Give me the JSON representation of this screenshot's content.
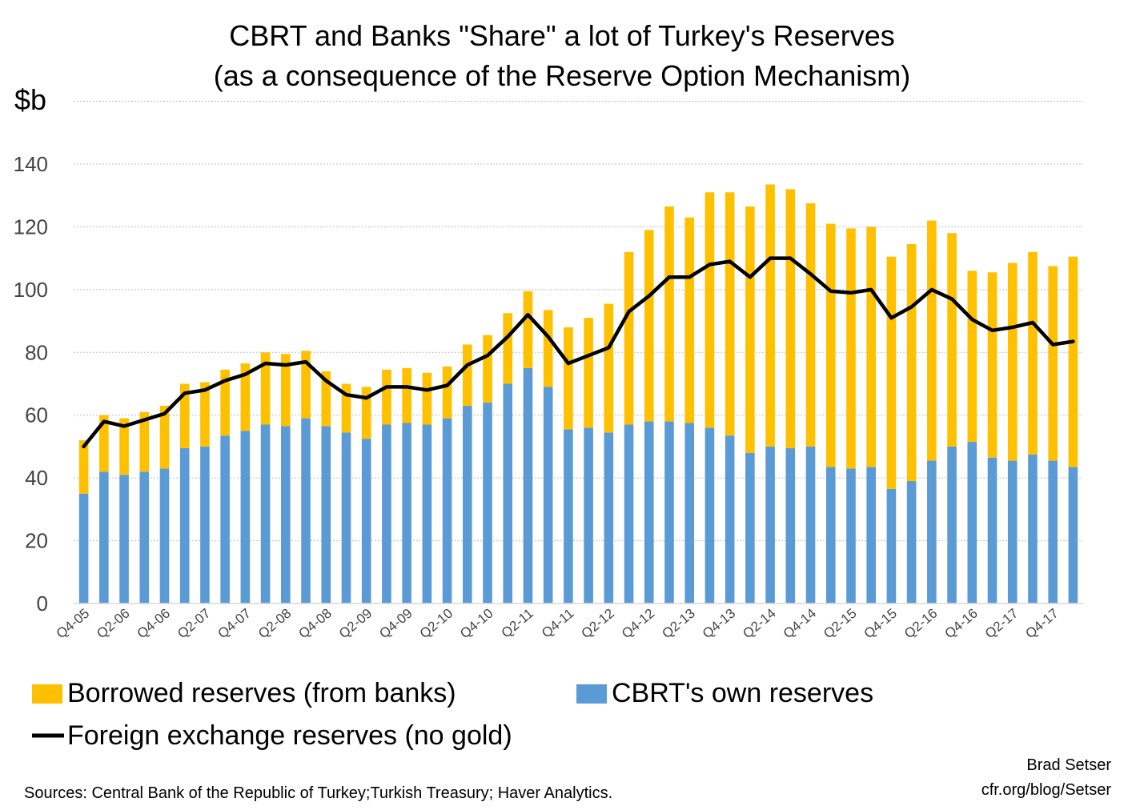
{
  "chart_data": {
    "type": "bar",
    "title": "CBRT and Banks \"Share\" a lot of Turkey's Reserves",
    "subtitle": "(as a consequence of the Reserve Option Mechanism)",
    "ylabel": "$b",
    "xlabel": "",
    "ylim": [
      0,
      160
    ],
    "yticks": [
      0,
      20,
      40,
      60,
      80,
      100,
      120,
      140
    ],
    "grid": true,
    "legend_placement": "bottom",
    "categories": [
      "Q4-05",
      "Q1-06",
      "Q2-06",
      "Q3-06",
      "Q4-06",
      "Q1-07",
      "Q2-07",
      "Q3-07",
      "Q4-07",
      "Q1-08",
      "Q2-08",
      "Q3-08",
      "Q4-08",
      "Q1-09",
      "Q2-09",
      "Q3-09",
      "Q4-09",
      "Q1-10",
      "Q2-10",
      "Q3-10",
      "Q4-10",
      "Q1-11",
      "Q2-11",
      "Q3-11",
      "Q4-11",
      "Q1-12",
      "Q2-12",
      "Q3-12",
      "Q4-12",
      "Q1-13",
      "Q2-13",
      "Q3-13",
      "Q4-13",
      "Q1-14",
      "Q2-14",
      "Q3-14",
      "Q4-14",
      "Q1-15",
      "Q2-15",
      "Q3-15",
      "Q4-15",
      "Q1-16",
      "Q2-16",
      "Q3-16",
      "Q4-16",
      "Q1-17",
      "Q2-17",
      "Q3-17",
      "Q4-17",
      "Q1-18"
    ],
    "tick_labels": [
      "Q4-05",
      "Q2-06",
      "Q4-06",
      "Q2-07",
      "Q4-07",
      "Q2-08",
      "Q4-08",
      "Q2-09",
      "Q4-09",
      "Q2-10",
      "Q4-10",
      "Q2-11",
      "Q4-11",
      "Q2-12",
      "Q4-12",
      "Q2-13",
      "Q4-13",
      "Q2-14",
      "Q4-14",
      "Q2-15",
      "Q4-15",
      "Q2-16",
      "Q4-16",
      "Q2-17",
      "Q4-17"
    ],
    "series": [
      {
        "name": "CBRT's own reserves",
        "kind": "bar-stack-bottom",
        "color": "#5b9bd5",
        "values": [
          35,
          42,
          41,
          42,
          43,
          49.5,
          50,
          53.5,
          55,
          57,
          56.5,
          59,
          56.5,
          54.5,
          52.5,
          57,
          57.5,
          57,
          59,
          63,
          64,
          70,
          75,
          69,
          55.5,
          56,
          54.5,
          57,
          58,
          58,
          57.5,
          56,
          53.5,
          48,
          50,
          49.5,
          50,
          43.5,
          43,
          43.5,
          36.5,
          39,
          45.5,
          50,
          51.5,
          46.5,
          45.5,
          47.5,
          45.5,
          43.5
        ]
      },
      {
        "name": "Borrowed reserves (from banks)",
        "kind": "bar-stack-top",
        "color": "#ffc000",
        "values": [
          17,
          18,
          18,
          19,
          20,
          20.5,
          20.5,
          21,
          21.5,
          23,
          23,
          21.5,
          17.5,
          15.5,
          16.5,
          17.5,
          17.5,
          16.5,
          16.5,
          19.5,
          21.5,
          22.5,
          24.5,
          24.5,
          32.5,
          35,
          41,
          55,
          61,
          68.5,
          65.5,
          75,
          77.5,
          78.5,
          83.5,
          82.5,
          77.5,
          77.5,
          76.5,
          76.5,
          74,
          75.5,
          76.5,
          68,
          54.5,
          59,
          63,
          64.5,
          62,
          67
        ]
      },
      {
        "name": "Foreign exchange reserves (no gold)",
        "kind": "line",
        "color": "#000000",
        "values": [
          50,
          58,
          56.5,
          58.5,
          60.5,
          67,
          68,
          71,
          73,
          76.5,
          76,
          77,
          71,
          66.5,
          65.5,
          69,
          69,
          68,
          69.5,
          76,
          79,
          85,
          92,
          85,
          76.5,
          79,
          81.5,
          93,
          98,
          104,
          104,
          108,
          109,
          104,
          110,
          110,
          105,
          99.5,
          99,
          100,
          91,
          94.5,
          100,
          97,
          90.5,
          87,
          88,
          89.5,
          82.5,
          83.5
        ]
      }
    ]
  },
  "legend": {
    "borrowed_label": "Borrowed reserves (from banks)",
    "cbrt_label": "CBRT's own reserves",
    "fx_label": "Foreign exchange reserves (no gold)"
  },
  "footer": {
    "sources": "Sources: Central Bank of the Republic of Turkey;Turkish Treasury; Haver Analytics.",
    "author": "Brad Setser",
    "url": "cfr.org/blog/Setser"
  }
}
